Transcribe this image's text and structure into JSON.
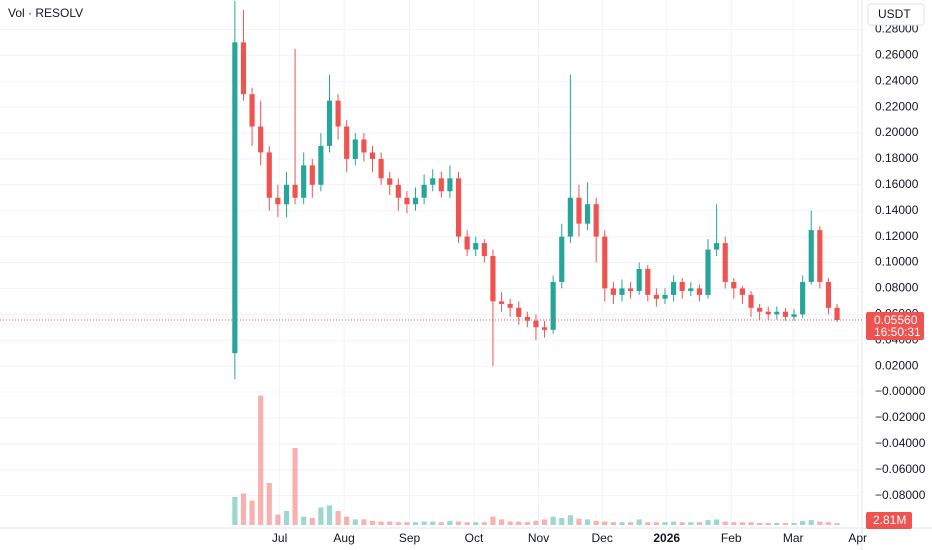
{
  "chart_data": {
    "type": "candlestick",
    "legend": "Vol · RESOLV",
    "currency": "USDT",
    "up_color": "#26a69a",
    "down_color": "#ef5350",
    "grid": true,
    "xlim": [
      -27.3,
      72.9
    ],
    "xticks": [
      {
        "value": 5.2,
        "label": "Jul"
      },
      {
        "value": 12.7,
        "label": "Aug"
      },
      {
        "value": 20.3,
        "label": "Sep"
      },
      {
        "value": 27.8,
        "label": "Oct"
      },
      {
        "value": 35.3,
        "label": "Nov"
      },
      {
        "value": 42.7,
        "label": "Dec"
      },
      {
        "value": 50.2,
        "label": "2026"
      },
      {
        "value": 57.7,
        "label": "Feb"
      },
      {
        "value": 64.9,
        "label": "Mar"
      },
      {
        "value": 72.4,
        "label": "Apr"
      }
    ],
    "ylim": [
      -0.105,
      0.3027
    ],
    "yticks": [
      {
        "value": 0.28,
        "label": "0.28000"
      },
      {
        "value": 0.26,
        "label": "0.26000"
      },
      {
        "value": 0.24,
        "label": "0.24000"
      },
      {
        "value": 0.22,
        "label": "0.22000"
      },
      {
        "value": 0.2,
        "label": "0.20000"
      },
      {
        "value": 0.18,
        "label": "0.18000"
      },
      {
        "value": 0.16,
        "label": "0.16000"
      },
      {
        "value": 0.14,
        "label": "0.14000"
      },
      {
        "value": 0.12,
        "label": "0.12000"
      },
      {
        "value": 0.1,
        "label": "0.10000"
      },
      {
        "value": 0.08,
        "label": "0.08000"
      },
      {
        "value": 0.06,
        "label": "0.06000"
      },
      {
        "value": 0.04,
        "label": "0.04000"
      },
      {
        "value": 0.02,
        "label": "0.02000"
      },
      {
        "value": 0,
        "label": "−0.00000"
      },
      {
        "value": -0.02,
        "label": "−0.02000"
      },
      {
        "value": -0.04,
        "label": "−0.04000"
      },
      {
        "value": -0.06,
        "label": "−0.06000"
      },
      {
        "value": -0.08,
        "label": "−0.08000"
      }
    ],
    "open": [
      0.03,
      0.27,
      0.23,
      0.205,
      0.185,
      0.15,
      0.145,
      0.16,
      0.15,
      0.175,
      0.16,
      0.19,
      0.225,
      0.205,
      0.18,
      0.195,
      0.185,
      0.18,
      0.165,
      0.16,
      0.15,
      0.145,
      0.15,
      0.16,
      0.165,
      0.155,
      0.165,
      0.12,
      0.11,
      0.115,
      0.105,
      0.07,
      0.068,
      0.065,
      0.058,
      0.055,
      0.05,
      0.048,
      0.085,
      0.12,
      0.15,
      0.13,
      0.145,
      0.12,
      0.08,
      0.075,
      0.08,
      0.078,
      0.095,
      0.075,
      0.072,
      0.075,
      0.085,
      0.078,
      0.08,
      0.075,
      0.11,
      0.115,
      0.085,
      0.08,
      0.075,
      0.065,
      0.062,
      0.06,
      0.062,
      0.058,
      0.06,
      0.085,
      0.125,
      0.085,
      0.065
    ],
    "high": [
      0.302,
      0.295,
      0.235,
      0.225,
      0.19,
      0.16,
      0.17,
      0.265,
      0.185,
      0.18,
      0.2,
      0.245,
      0.23,
      0.21,
      0.2,
      0.2,
      0.19,
      0.185,
      0.17,
      0.165,
      0.155,
      0.158,
      0.168,
      0.172,
      0.17,
      0.175,
      0.17,
      0.125,
      0.12,
      0.118,
      0.11,
      0.077,
      0.072,
      0.07,
      0.062,
      0.06,
      0.055,
      0.09,
      0.13,
      0.245,
      0.16,
      0.162,
      0.15,
      0.125,
      0.085,
      0.087,
      0.085,
      0.1,
      0.098,
      0.08,
      0.08,
      0.09,
      0.088,
      0.085,
      0.083,
      0.118,
      0.145,
      0.12,
      0.088,
      0.082,
      0.078,
      0.068,
      0.066,
      0.066,
      0.065,
      0.064,
      0.09,
      0.14,
      0.128,
      0.088,
      0.068
    ],
    "low": [
      0.01,
      0.225,
      0.19,
      0.175,
      0.14,
      0.135,
      0.135,
      0.145,
      0.145,
      0.15,
      0.155,
      0.185,
      0.195,
      0.17,
      0.175,
      0.178,
      0.17,
      0.16,
      0.152,
      0.14,
      0.138,
      0.14,
      0.145,
      0.155,
      0.15,
      0.15,
      0.115,
      0.105,
      0.105,
      0.1,
      0.02,
      0.062,
      0.058,
      0.052,
      0.05,
      0.04,
      0.042,
      0.045,
      0.08,
      0.115,
      0.12,
      0.125,
      0.1,
      0.07,
      0.068,
      0.07,
      0.072,
      0.075,
      0.07,
      0.066,
      0.068,
      0.07,
      0.072,
      0.074,
      0.07,
      0.072,
      0.105,
      0.08,
      0.072,
      0.068,
      0.058,
      0.056,
      0.056,
      0.056,
      0.055,
      0.055,
      0.057,
      0.083,
      0.08,
      0.06,
      0.054
    ],
    "close": [
      0.27,
      0.23,
      0.205,
      0.185,
      0.15,
      0.145,
      0.16,
      0.15,
      0.175,
      0.16,
      0.19,
      0.225,
      0.205,
      0.18,
      0.195,
      0.185,
      0.18,
      0.165,
      0.16,
      0.15,
      0.145,
      0.15,
      0.16,
      0.165,
      0.155,
      0.165,
      0.12,
      0.11,
      0.115,
      0.105,
      0.07,
      0.068,
      0.065,
      0.058,
      0.055,
      0.05,
      0.048,
      0.085,
      0.12,
      0.15,
      0.13,
      0.145,
      0.12,
      0.08,
      0.075,
      0.08,
      0.078,
      0.095,
      0.075,
      0.072,
      0.075,
      0.085,
      0.078,
      0.08,
      0.075,
      0.11,
      0.115,
      0.085,
      0.08,
      0.075,
      0.065,
      0.062,
      0.06,
      0.062,
      0.058,
      0.06,
      0.085,
      0.125,
      0.085,
      0.065,
      0.0556
    ],
    "volume": {
      "ylim": [
        0,
        190
      ],
      "values": [
        40,
        45,
        35,
        185,
        60,
        15,
        20,
        110,
        12,
        10,
        25,
        28,
        20,
        12,
        8,
        8,
        6,
        5,
        5,
        4,
        4,
        4,
        5,
        5,
        4,
        6,
        5,
        4,
        4,
        4,
        12,
        8,
        5,
        5,
        4,
        6,
        8,
        12,
        10,
        14,
        9,
        8,
        6,
        5,
        4,
        4,
        4,
        8,
        4,
        4,
        4,
        5,
        4,
        4,
        4,
        7,
        8,
        5,
        4,
        4,
        4,
        3,
        3,
        3,
        3,
        3,
        6,
        7,
        5,
        4,
        2.81
      ],
      "last_label": "2.81M"
    },
    "last_price": {
      "value": 0.0556,
      "label": "0.05560"
    },
    "countdown": "16:50:31"
  }
}
